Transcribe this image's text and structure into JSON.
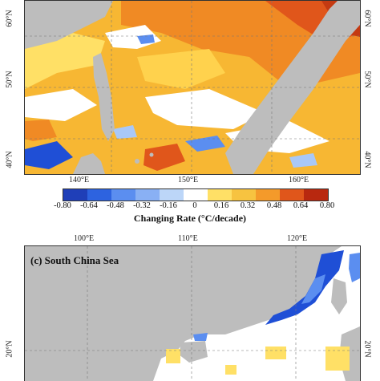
{
  "colors": {
    "land": "#bdbdbd",
    "ocean_neutral": "#ffffff",
    "cool_strong": "#1f4fd6",
    "cool_mid": "#5b8ef0",
    "cool_light": "#a9c8f7",
    "warm_light": "#ffe066",
    "warm_mid": "#f7b733",
    "warm_strong": "#f08a24",
    "hot": "#e0561b",
    "hottest": "#c43a12"
  },
  "top_panel": {
    "lon_labels": [
      "140°E",
      "150°E",
      "160°E"
    ],
    "lat_labels_left": [
      "60°N",
      "50°N",
      "40°N"
    ],
    "lat_labels_right": [
      "60°N",
      "50°N",
      "40°N"
    ]
  },
  "colorbar": {
    "ticks": [
      "-0.80",
      "-0.64",
      "-0.48",
      "-0.32",
      "-0.16",
      "0",
      "0.16",
      "0.32",
      "0.48",
      "0.64",
      "0.80"
    ],
    "colors": [
      "#1f3fb8",
      "#2d63e0",
      "#5b8ef0",
      "#89b0f4",
      "#bcd6f8",
      "#ffffff",
      "#ffe066",
      "#f7c340",
      "#f49a2a",
      "#e0561b",
      "#b8280f"
    ],
    "title": "Changing Rate (°C/decade)"
  },
  "bottom_panel": {
    "title": "(c) South China Sea",
    "lon_labels": [
      "100°E",
      "110°E",
      "120°E"
    ],
    "lat_labels_left": [
      "20°N"
    ],
    "lat_labels_right": [
      "20°N"
    ]
  }
}
